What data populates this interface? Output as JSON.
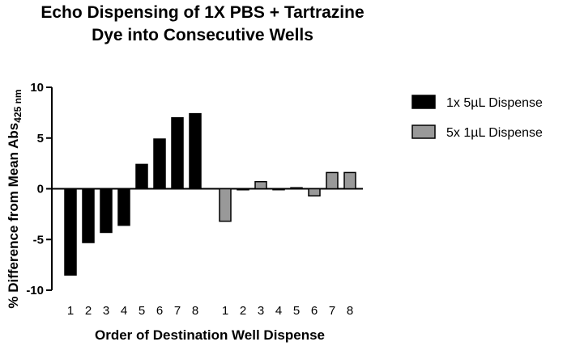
{
  "chart_data": {
    "type": "bar",
    "title_line1": "Echo Dispensing of 1X PBS + Tartrazine",
    "title_line2": "Dye into Consecutive Wells",
    "xlabel": "Order of Destination Well Dispense",
    "ylabel_main": "% Difference from Mean Abs",
    "ylabel_sub": "425 nm",
    "ylim": [
      -10,
      10
    ],
    "yticks": [
      -10,
      -5,
      0,
      5,
      10
    ],
    "ytick_labels": [
      "-10",
      "-5",
      "0",
      "5",
      "10"
    ],
    "categories": [
      "1",
      "2",
      "3",
      "4",
      "5",
      "6",
      "7",
      "8"
    ],
    "series": [
      {
        "name": "1x 5µL Dispense",
        "color": "#000000",
        "values": [
          -8.5,
          -5.3,
          -4.3,
          -3.6,
          2.4,
          4.9,
          7.0,
          7.4
        ]
      },
      {
        "name": "5x 1µL Dispense",
        "color": "#999999",
        "values": [
          -3.2,
          -0.1,
          0.7,
          0.0,
          0.1,
          -0.7,
          1.6,
          1.6
        ]
      }
    ],
    "legend_position": "right",
    "grid": false
  }
}
